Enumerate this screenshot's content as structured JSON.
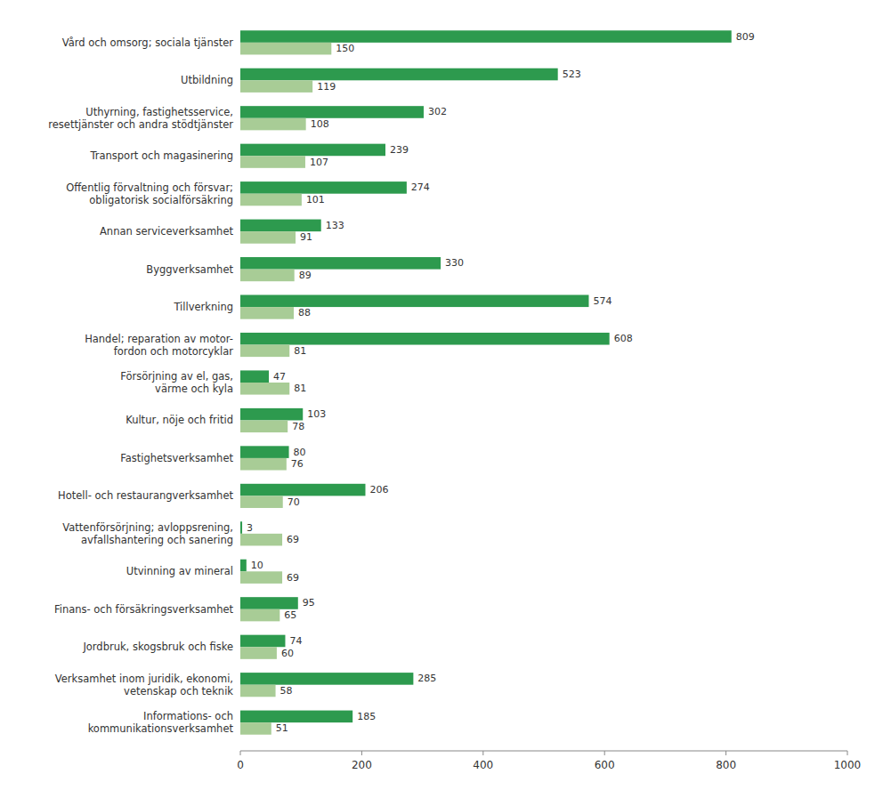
{
  "chart_data": {
    "type": "bar",
    "orientation": "horizontal",
    "categories": [
      "Informations- och\nkommunikationsverksamhet",
      "Verksamhet inom juridik, ekonomi,\nvetenskap och teknik",
      "Jordbruk, skogsbruk och fiske",
      "Finans- och försäkringsverksamhet",
      "Utvinning av mineral",
      "Vattenförsörjning; avloppsrening,\navfallshantering och sanering",
      "Hotell- och restaurangverksamhet",
      "Fastighetsverksamhet",
      "Kultur, nöje och fritid",
      "Försörjning av el, gas,\nvärme och kyla",
      "Handel; reparation av motor-\nfordon och motorcyklar",
      "Tillverkning",
      "Byggverksamhet",
      "Annan serviceverksamhet",
      "Offentlig förvaltning och försvar;\nobligatorisk socialförsäkring",
      "Transport och magasinering",
      "Uthyrning, fastighetsservice,\nresettjänster och andra stödtjänster",
      "Utbildning",
      "Vård och omsorg; sociala tjänster"
    ],
    "series": [
      {
        "color": "#2d9a4e",
        "values": [
          185,
          285,
          74,
          95,
          10,
          3,
          206,
          80,
          103,
          47,
          608,
          574,
          330,
          133,
          274,
          239,
          302,
          523,
          809
        ]
      },
      {
        "color": "#a8cc96",
        "values": [
          51,
          58,
          60,
          65,
          69,
          69,
          70,
          76,
          78,
          81,
          81,
          88,
          89,
          91,
          101,
          107,
          108,
          119,
          150
        ]
      }
    ],
    "xlim": [
      0,
      1000
    ],
    "xticks": [
      0,
      200,
      400,
      600,
      800,
      1000
    ],
    "grid": false,
    "data_labels": true
  }
}
